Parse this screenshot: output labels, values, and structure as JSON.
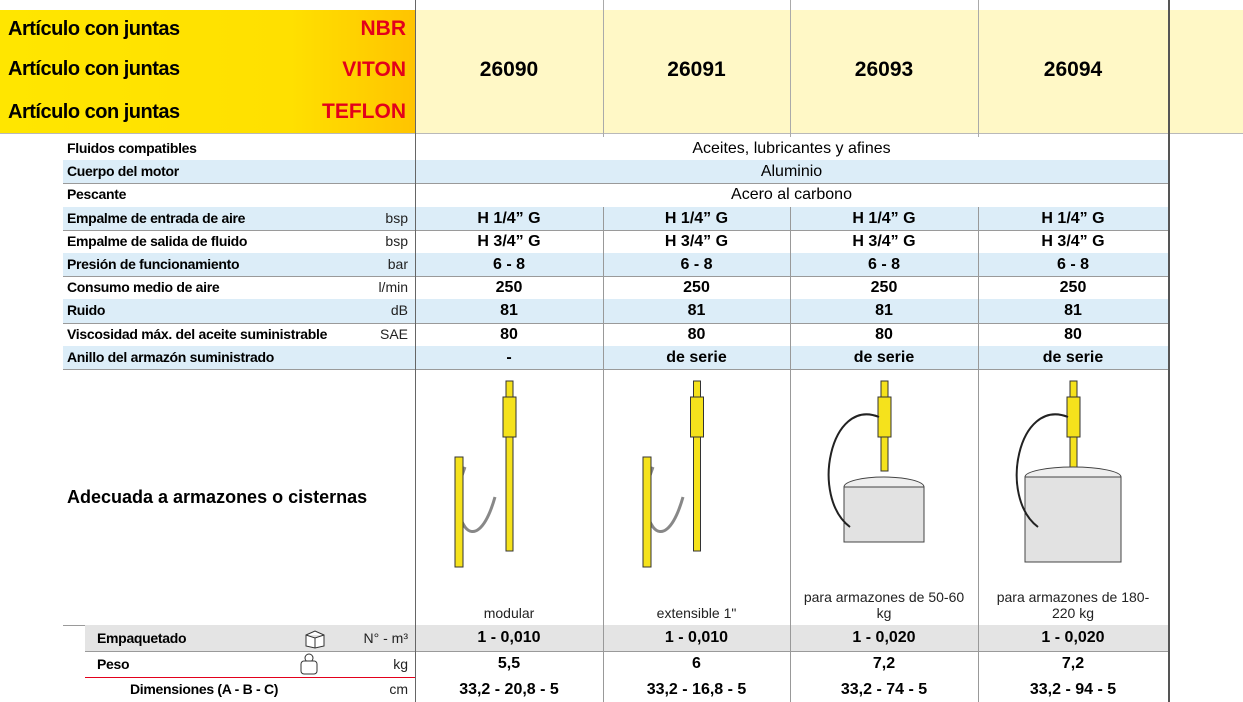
{
  "header": {
    "rows": [
      {
        "label": "Artículo con juntas",
        "seal": "NBR"
      },
      {
        "label": "Artículo con juntas",
        "seal": "VITON",
        "codes": [
          "26090",
          "26091",
          "26093",
          "26094"
        ]
      },
      {
        "label": "Artículo con juntas",
        "seal": "TEFLON"
      }
    ]
  },
  "specs": [
    {
      "label": "Fluidos compatibles",
      "value": "Aceites, lubricantes y afines"
    },
    {
      "label": "Cuerpo del motor",
      "value": "Aluminio"
    },
    {
      "label": "Pescante",
      "value": "Acero al carbono"
    },
    {
      "label": "Empalme de entrada de aire",
      "unit": "bsp",
      "values": [
        "H 1/4” G",
        "H 1/4” G",
        "H 1/4” G",
        "H 1/4” G"
      ]
    },
    {
      "label": "Empalme de salida de fluido",
      "unit": "bsp",
      "values": [
        "H 3/4” G",
        "H 3/4” G",
        "H 3/4” G",
        "H 3/4” G"
      ]
    },
    {
      "label": "Presión de funcionamiento",
      "unit": "bar",
      "values": [
        "6 - 8",
        "6 - 8",
        "6 - 8",
        "6 - 8"
      ]
    },
    {
      "label": "Consumo medio de aire",
      "unit": "l/min",
      "values": [
        "250",
        "250",
        "250",
        "250"
      ]
    },
    {
      "label": "Ruido",
      "unit": "dB",
      "values": [
        "81",
        "81",
        "81",
        "81"
      ]
    },
    {
      "label": "Viscosidad máx. del aceite suministrable",
      "unit": "SAE",
      "values": [
        "80",
        "80",
        "80",
        "80"
      ]
    },
    {
      "label": "Anillo del armazón suministrado",
      "values": [
        "-",
        "de serie",
        "de serie",
        "de serie"
      ]
    }
  ],
  "application": {
    "label": "Adecuada a armazones o cisternas",
    "captions": [
      "modular",
      "extensible 1\"",
      "para armazones de 50-60 kg",
      "para armazones de 180-220 kg"
    ]
  },
  "packaging": [
    {
      "label": "Empaquetado",
      "unit": "N° - m³",
      "values": [
        "1 - 0,010",
        "1 - 0,010",
        "1 - 0,020",
        "1 - 0,020"
      ]
    },
    {
      "label": "Peso",
      "unit": "kg",
      "values": [
        "5,5",
        "6",
        "7,2",
        "7,2"
      ]
    },
    {
      "label": "Dimensiones (A - B - C)",
      "unit": "cm",
      "values": [
        "33,2 - 20,8 - 5",
        "33,2 - 16,8 - 5",
        "33,2 - 74 - 5",
        "33,2 - 94 - 5"
      ]
    }
  ]
}
